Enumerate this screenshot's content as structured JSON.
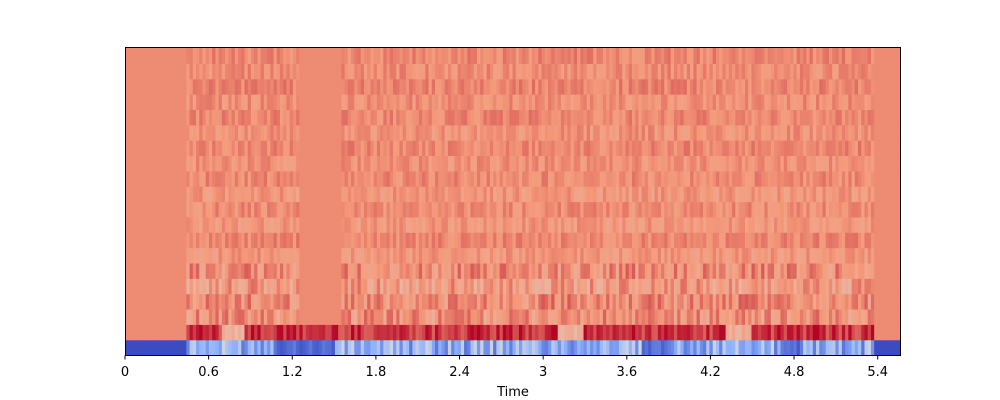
{
  "chart_data": {
    "type": "heatmap",
    "title": "",
    "xlabel": "Time",
    "ylabel": "",
    "xlim": [
      0,
      5.56
    ],
    "x_ticks": [
      0,
      0.6,
      1.2,
      1.8,
      2.4,
      3,
      3.6,
      4.2,
      4.8,
      5.4
    ],
    "x_tick_labels": [
      "0",
      "0.6",
      "1.2",
      "1.8",
      "2.4",
      "3",
      "3.6",
      "4.2",
      "4.8",
      "5.4"
    ],
    "y_ticks": [],
    "n_coefficients": 20,
    "n_frames": 240,
    "colormap": "coolwarm",
    "active_segment": [
      0.44,
      5.38
    ],
    "rows": [
      {
        "index": 0,
        "description": "lowest coefficient, strongly negative",
        "base": -1.0,
        "silence": -1.0
      },
      {
        "index": 1,
        "description": "strongly positive",
        "base": 0.9,
        "silence": 0.55
      },
      {
        "index": 2,
        "base": 0.52,
        "silence": 0.55
      },
      {
        "index": 3,
        "base": 0.55,
        "silence": 0.55
      },
      {
        "index": 4,
        "base": 0.48,
        "silence": 0.55
      },
      {
        "index": 5,
        "base": 0.55,
        "silence": 0.55
      },
      {
        "index": 6,
        "base": 0.5,
        "silence": 0.55
      },
      {
        "index": 7,
        "base": 0.56,
        "silence": 0.55
      },
      {
        "index": 8,
        "base": 0.5,
        "silence": 0.55
      },
      {
        "index": 9,
        "base": 0.54,
        "silence": 0.55
      },
      {
        "index": 10,
        "base": 0.5,
        "silence": 0.55
      },
      {
        "index": 11,
        "base": 0.55,
        "silence": 0.55
      },
      {
        "index": 12,
        "base": 0.52,
        "silence": 0.55
      },
      {
        "index": 13,
        "base": 0.56,
        "silence": 0.55
      },
      {
        "index": 14,
        "base": 0.52,
        "silence": 0.55
      },
      {
        "index": 15,
        "base": 0.56,
        "silence": 0.55
      },
      {
        "index": 16,
        "base": 0.53,
        "silence": 0.55
      },
      {
        "index": 17,
        "base": 0.57,
        "silence": 0.55
      },
      {
        "index": 18,
        "base": 0.54,
        "silence": 0.55
      },
      {
        "index": 19,
        "base": 0.56,
        "silence": 0.55
      }
    ],
    "grid": false,
    "legend": "none"
  }
}
